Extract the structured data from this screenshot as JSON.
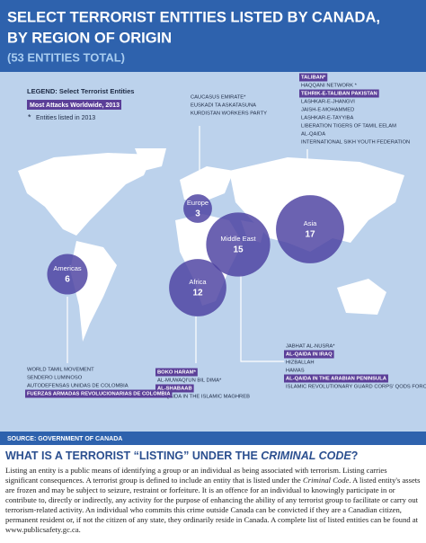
{
  "header": {
    "title_lines": [
      "SELECT TERRORIST ENTITIES LISTED BY CANADA,",
      "BY REGION OF ORIGIN"
    ],
    "subtitle": "(53 ENTITIES TOTAL)"
  },
  "legend": {
    "title": "LEGEND: Select Terrorist Entities",
    "highlight_label": "Most Attacks Worldwide, 2013",
    "asterisk": "*",
    "asterisk_label": "Entities listed in 2013"
  },
  "regions": [
    {
      "name": "Europe",
      "count": 3,
      "entities": [
        {
          "name": "CAUCASUS EMIRATE*",
          "highlight": false
        },
        {
          "name": "EUSKADI TA ASKATASUNA",
          "highlight": false
        },
        {
          "name": "KURDISTAN WORKERS PARTY",
          "highlight": false
        }
      ]
    },
    {
      "name": "Asia",
      "count": 17,
      "entities": [
        {
          "name": "TALIBAN*",
          "highlight": true
        },
        {
          "name": "HAQQANI NETWORK *",
          "highlight": false
        },
        {
          "name": "TEHRIK-E-TALIBAN PAKISTAN",
          "highlight": true
        },
        {
          "name": "LASHKAR-E-JHANGVI",
          "highlight": false
        },
        {
          "name": "JAISH-E-MOHAMMED",
          "highlight": false
        },
        {
          "name": "LASHKAR-E-TAYYIBA",
          "highlight": false
        },
        {
          "name": "LIBERATION TIGERS OF TAMIL EELAM",
          "highlight": false
        },
        {
          "name": "AL-QAIDA",
          "highlight": false
        },
        {
          "name": "INTERNATIONAL SIKH YOUTH FEDERATION",
          "highlight": false
        }
      ]
    },
    {
      "name": "Middle East",
      "count": 15,
      "entities": [
        {
          "name": "JABHAT AL-NUSRA*",
          "highlight": false
        },
        {
          "name": "AL-QAIDA IN IRAQ",
          "highlight": true
        },
        {
          "name": "HIZBALLAH",
          "highlight": false
        },
        {
          "name": "HAMAS",
          "highlight": false
        },
        {
          "name": "AL-QAIDA IN THE ARABIAN PENINSULA",
          "highlight": true
        },
        {
          "name": "ISLAMIC REVOLUTIONARY GUARD CORPS' QODS FORCE",
          "highlight": false
        }
      ]
    },
    {
      "name": "Africa",
      "count": 12,
      "entities": [
        {
          "name": "BOKO HARAM*",
          "highlight": true
        },
        {
          "name": "AL-MUWAQI'UN BIL DIMA*",
          "highlight": false
        },
        {
          "name": "AL-SHABAAB",
          "highlight": true
        },
        {
          "name": "AL-QAIDA IN THE ISLAMIC MAGHREB",
          "highlight": false
        }
      ]
    },
    {
      "name": "Americas",
      "count": 6,
      "entities": [
        {
          "name": "WORLD TAMIL MOVEMENT",
          "highlight": false
        },
        {
          "name": "SENDERO LUMINOSO",
          "highlight": false
        },
        {
          "name": "AUTODEFENSAS UNIDAS DE COLOMBIA",
          "highlight": false
        },
        {
          "name": "FUERZAS ARMADAS REVOLUCIONARIAS DE COLOMBIA",
          "highlight": true
        }
      ]
    }
  ],
  "source": "SOURCE: GOVERNMENT OF CANADA",
  "section": {
    "heading": [
      "WHAT IS A TERRORIST “LISTING” UNDER THE ",
      "CRIMINAL CODE",
      "?"
    ],
    "paragraph": [
      "Listing an entity is a public means of identifying a group or an individual as being associated with terrorism. Listing carries significant consequences. A terrorist group is defined to include an entity that is listed under the ",
      "Criminal Code",
      ". A listed entity's assets are frozen and may be subject to seizure, restraint or forfeiture. It is an offence for an individual to knowingly participate in or contribute to, directly or indirectly, any activity for the purpose of enhancing the ability of any terrorist group to facilitate or carry out terrorism-related activity. An individual who commits this crime outside Canada can be convicted if they are a Canadian citizen, permanent resident or, if not the citizen of any state, they ordinarily reside in Canada. A complete list of listed entities can be found at www.publicsafety.gc.ca."
    ]
  }
}
